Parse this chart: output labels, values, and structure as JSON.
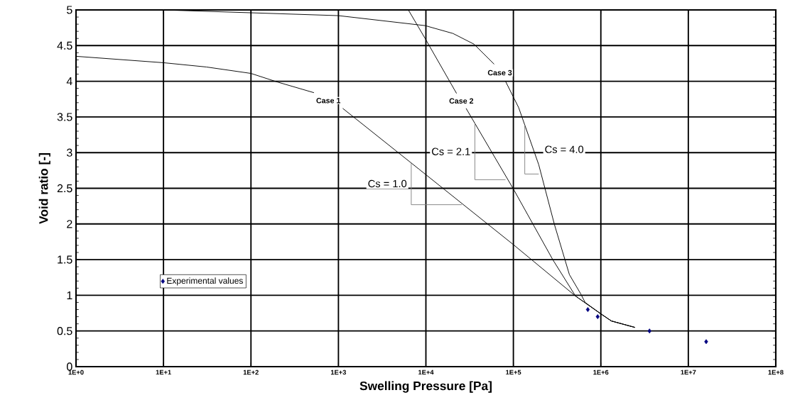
{
  "chart_data": {
    "type": "line",
    "xlabel": "Swelling Pressure [Pa]",
    "ylabel": "Void ratio [-]",
    "log": "x",
    "grid": true,
    "legend": "bottom left",
    "line_style": "solid",
    "xlim": [
      1,
      100000000
    ],
    "ylim": [
      0,
      5
    ],
    "xticks": [
      {
        "value": 1,
        "label": "1E+0"
      },
      {
        "value": 10,
        "label": "1E+1"
      },
      {
        "value": 100,
        "label": "1E+2"
      },
      {
        "value": 1000,
        "label": "1E+3"
      },
      {
        "value": 10000,
        "label": "1E+4"
      },
      {
        "value": 100000,
        "label": "1E+5"
      },
      {
        "value": 1000000,
        "label": "1E+6"
      },
      {
        "value": 10000000,
        "label": "1E+7"
      },
      {
        "value": 100000000,
        "label": "1E+8"
      }
    ],
    "yticks": [
      0,
      0.5,
      1,
      1.5,
      2,
      2.5,
      3,
      3.5,
      4,
      4.5,
      5
    ],
    "series": [
      {
        "name": "Case 1",
        "color": "#000000",
        "marker": "none",
        "x": [
          1,
          10,
          31,
          100,
          200,
          525,
          760,
          1120,
          8300,
          100000,
          513000,
          1000000,
          1320000,
          2450000
        ],
        "values": [
          4.35,
          4.26,
          4.2,
          4.11,
          3.99,
          3.84,
          null,
          3.62,
          2.77,
          1.71,
          0.99,
          0.74,
          0.64,
          0.55
        ]
      },
      {
        "name": "Case 2",
        "color": "#000000",
        "marker": "none",
        "x": [
          6300,
          9800,
          22400,
          25000,
          28800,
          100000,
          282000,
          513000,
          1000000,
          1320000,
          2450000
        ],
        "values": [
          5.0,
          4.6,
          3.83,
          null,
          3.62,
          2.49,
          1.5,
          0.99,
          0.74,
          0.64,
          0.55
        ]
      },
      {
        "name": "Case 3",
        "color": "#000000",
        "marker": "none",
        "x": [
          10,
          1000,
          9800,
          20400,
          35500,
          60300,
          70000,
          81300,
          115000,
          195000,
          295000,
          437000,
          589000,
          661000,
          1000000,
          1320000,
          2450000
        ],
        "values": [
          5.0,
          4.92,
          4.78,
          4.67,
          4.52,
          4.24,
          null,
          4.0,
          3.63,
          2.83,
          1.99,
          1.29,
          1.02,
          0.9,
          0.74,
          0.64,
          0.55
        ]
      },
      {
        "color": "#808080",
        "marker": "none",
        "x": [
          6800,
          6800,
          25700
        ],
        "values": [
          2.86,
          2.27,
          2.27
        ]
      },
      {
        "color": "#808080",
        "marker": "none",
        "x": [
          36300,
          36300,
          81300
        ],
        "values": [
          3.41,
          2.62,
          2.62
        ]
      },
      {
        "color": "#808080",
        "marker": "none",
        "x": [
          135000,
          135000,
          195000
        ],
        "values": [
          3.39,
          2.7,
          2.7
        ]
      },
      {
        "name": "Experimental values",
        "type": "scatter",
        "color": "#000080",
        "marker": "diamond",
        "x": [
          710000,
          920000,
          3600000,
          16000000
        ],
        "values": [
          0.8,
          0.7,
          0.5,
          0.35
        ]
      }
    ],
    "annotations": [
      "Cs = 1.0",
      "Cs = 2.1",
      "Cs = 4.0"
    ]
  }
}
